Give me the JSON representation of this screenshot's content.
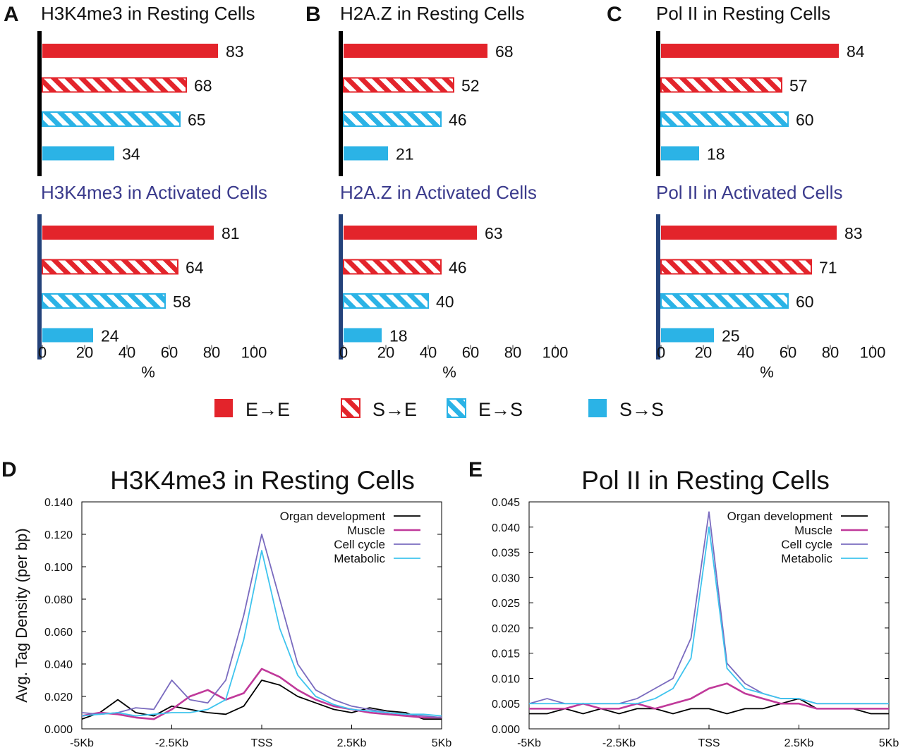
{
  "colors": {
    "red": "#e3242b",
    "blue": "#2bb3e6",
    "dark_axis": "#000000",
    "act_axis": "#24427a",
    "organ": "#000000",
    "muscle": "#c0399a",
    "cellcycle": "#7a6bbf",
    "metabolic": "#3fc4ee"
  },
  "legend": {
    "items": [
      {
        "label": "E→E",
        "style": "solid",
        "color": "red"
      },
      {
        "label": "S→E",
        "style": "hatch",
        "color": "red"
      },
      {
        "label": "E→S",
        "style": "hatch",
        "color": "blue"
      },
      {
        "label": "S→S",
        "style": "solid",
        "color": "blue"
      }
    ]
  },
  "x_tick_labels": [
    "0",
    "20",
    "40",
    "60",
    "80",
    "100"
  ],
  "x_unit": "%",
  "chart_data": [
    {
      "panel": "A",
      "type": "bar",
      "title": "H3K4me3  in Resting Cells",
      "state": "resting",
      "categories": [
        "E→E",
        "S→E",
        "E→S",
        "S→S"
      ],
      "values": [
        83,
        68,
        65,
        34
      ],
      "xlim": [
        0,
        100
      ],
      "xlabel": "%"
    },
    {
      "panel": "",
      "type": "bar",
      "title": "H3K4me3  in Activated Cells",
      "state": "activated",
      "categories": [
        "E→E",
        "S→E",
        "E→S",
        "S→S"
      ],
      "values": [
        81,
        64,
        58,
        24
      ],
      "xlim": [
        0,
        100
      ],
      "xlabel": "%"
    },
    {
      "panel": "B",
      "type": "bar",
      "title": "H2A.Z in Resting Cells",
      "state": "resting",
      "categories": [
        "E→E",
        "S→E",
        "E→S",
        "S→S"
      ],
      "values": [
        68,
        52,
        46,
        21
      ],
      "xlim": [
        0,
        100
      ],
      "xlabel": "%"
    },
    {
      "panel": "",
      "type": "bar",
      "title": "H2A.Z in Activated Cells",
      "state": "activated",
      "categories": [
        "E→E",
        "S→E",
        "E→S",
        "S→S"
      ],
      "values": [
        63,
        46,
        40,
        18
      ],
      "xlim": [
        0,
        100
      ],
      "xlabel": "%"
    },
    {
      "panel": "C",
      "type": "bar",
      "title": "Pol II in Resting Cells",
      "state": "resting",
      "categories": [
        "E→E",
        "S→E",
        "E→S",
        "S→S"
      ],
      "values": [
        84,
        57,
        60,
        18
      ],
      "xlim": [
        0,
        100
      ],
      "xlabel": "%"
    },
    {
      "panel": "",
      "type": "bar",
      "title": "Pol II in Activated  Cells",
      "state": "activated",
      "categories": [
        "E→E",
        "S→E",
        "E→S",
        "S→S"
      ],
      "values": [
        83,
        71,
        60,
        25
      ],
      "xlim": [
        0,
        100
      ],
      "xlabel": "%"
    },
    {
      "panel": "D",
      "type": "line",
      "title": "H3K4me3 in Resting Cells",
      "ylabel": "Avg. Tag Density (per bp)",
      "ylim": [
        0,
        0.14
      ],
      "yticks": [
        "0.000",
        "0.020",
        "0.040",
        "0.060",
        "0.080",
        "0.100",
        "0.120",
        "0.140"
      ],
      "xticks": [
        "-5Kb",
        "-2.5Kb",
        "TSS",
        "2.5Kb",
        "5Kb"
      ],
      "xlim": [
        -5,
        5
      ],
      "series": [
        {
          "name": "Organ development",
          "color": "organ",
          "x": [
            -5,
            -4.5,
            -4,
            -3.5,
            -3,
            -2.5,
            -2,
            -1.5,
            -1,
            -0.5,
            0,
            0.5,
            1,
            1.5,
            2,
            2.5,
            3,
            3.5,
            4,
            4.5,
            5
          ],
          "values": [
            0.006,
            0.01,
            0.018,
            0.01,
            0.008,
            0.014,
            0.012,
            0.01,
            0.009,
            0.014,
            0.03,
            0.027,
            0.02,
            0.016,
            0.012,
            0.01,
            0.013,
            0.011,
            0.01,
            0.006,
            0.006
          ]
        },
        {
          "name": "Muscle",
          "color": "muscle",
          "x": [
            -5,
            -4.5,
            -4,
            -3.5,
            -3,
            -2.5,
            -2,
            -1.5,
            -1,
            -0.5,
            0,
            0.5,
            1,
            1.5,
            2,
            2.5,
            3,
            3.5,
            4,
            4.5,
            5
          ],
          "values": [
            0.008,
            0.01,
            0.009,
            0.007,
            0.006,
            0.012,
            0.02,
            0.024,
            0.018,
            0.022,
            0.037,
            0.032,
            0.024,
            0.018,
            0.014,
            0.012,
            0.01,
            0.009,
            0.008,
            0.007,
            0.007
          ]
        },
        {
          "name": "Cell cycle",
          "color": "cellcycle",
          "x": [
            -5,
            -4.5,
            -4,
            -3.5,
            -3,
            -2.5,
            -2,
            -1.5,
            -1,
            -0.5,
            0,
            0.5,
            1,
            1.5,
            2,
            2.5,
            3,
            3.5,
            4,
            4.5,
            5
          ],
          "values": [
            0.01,
            0.009,
            0.01,
            0.013,
            0.012,
            0.03,
            0.018,
            0.016,
            0.03,
            0.07,
            0.12,
            0.08,
            0.04,
            0.024,
            0.018,
            0.014,
            0.012,
            0.01,
            0.009,
            0.008,
            0.007
          ]
        },
        {
          "name": "Metabolic",
          "color": "metabolic",
          "x": [
            -5,
            -4.5,
            -4,
            -3.5,
            -3,
            -2.5,
            -2,
            -1.5,
            -1,
            -0.5,
            0,
            0.5,
            1,
            1.5,
            2,
            2.5,
            3,
            3.5,
            4,
            4.5,
            5
          ],
          "values": [
            0.008,
            0.009,
            0.01,
            0.008,
            0.009,
            0.01,
            0.01,
            0.012,
            0.018,
            0.055,
            0.11,
            0.062,
            0.033,
            0.02,
            0.015,
            0.012,
            0.011,
            0.01,
            0.009,
            0.009,
            0.008
          ]
        }
      ]
    },
    {
      "panel": "E",
      "type": "line",
      "title": "Pol II in Resting Cells",
      "ylim": [
        0,
        0.045
      ],
      "yticks": [
        "0.000",
        "0.005",
        "0.010",
        "0.015",
        "0.020",
        "0.025",
        "0.030",
        "0.035",
        "0.040",
        "0.045"
      ],
      "xticks": [
        "-5Kb",
        "-2.5Kb",
        "TSS",
        "2.5Kb",
        "5Kb"
      ],
      "xlim": [
        -5,
        5
      ],
      "series": [
        {
          "name": "Organ development",
          "color": "organ",
          "x": [
            -5,
            -4.5,
            -4,
            -3.5,
            -3,
            -2.5,
            -2,
            -1.5,
            -1,
            -0.5,
            0,
            0.5,
            1,
            1.5,
            2,
            2.5,
            3,
            3.5,
            4,
            4.5,
            5
          ],
          "values": [
            0.003,
            0.003,
            0.004,
            0.003,
            0.004,
            0.003,
            0.004,
            0.004,
            0.003,
            0.004,
            0.004,
            0.003,
            0.004,
            0.004,
            0.005,
            0.006,
            0.004,
            0.004,
            0.004,
            0.003,
            0.003
          ]
        },
        {
          "name": "Muscle",
          "color": "muscle",
          "x": [
            -5,
            -4.5,
            -4,
            -3.5,
            -3,
            -2.5,
            -2,
            -1.5,
            -1,
            -0.5,
            0,
            0.5,
            1,
            1.5,
            2,
            2.5,
            3,
            3.5,
            4,
            4.5,
            5
          ],
          "values": [
            0.004,
            0.004,
            0.004,
            0.005,
            0.004,
            0.004,
            0.005,
            0.004,
            0.005,
            0.006,
            0.008,
            0.009,
            0.007,
            0.006,
            0.005,
            0.005,
            0.004,
            0.004,
            0.004,
            0.004,
            0.004
          ]
        },
        {
          "name": "Cell cycle",
          "color": "cellcycle",
          "x": [
            -5,
            -4.5,
            -4,
            -3.5,
            -3,
            -2.5,
            -2,
            -1.5,
            -1,
            -0.5,
            0,
            0.5,
            1,
            1.5,
            2,
            2.5,
            3,
            3.5,
            4,
            4.5,
            5
          ],
          "values": [
            0.005,
            0.006,
            0.005,
            0.005,
            0.005,
            0.005,
            0.006,
            0.008,
            0.01,
            0.018,
            0.043,
            0.013,
            0.009,
            0.007,
            0.006,
            0.006,
            0.005,
            0.005,
            0.005,
            0.005,
            0.005
          ]
        },
        {
          "name": "Metabolic",
          "color": "metabolic",
          "x": [
            -5,
            -4.5,
            -4,
            -3.5,
            -3,
            -2.5,
            -2,
            -1.5,
            -1,
            -0.5,
            0,
            0.5,
            1,
            1.5,
            2,
            2.5,
            3,
            3.5,
            4,
            4.5,
            5
          ],
          "values": [
            0.005,
            0.005,
            0.005,
            0.005,
            0.005,
            0.005,
            0.005,
            0.006,
            0.008,
            0.014,
            0.04,
            0.012,
            0.008,
            0.007,
            0.006,
            0.006,
            0.005,
            0.005,
            0.005,
            0.005,
            0.005
          ]
        }
      ]
    }
  ]
}
